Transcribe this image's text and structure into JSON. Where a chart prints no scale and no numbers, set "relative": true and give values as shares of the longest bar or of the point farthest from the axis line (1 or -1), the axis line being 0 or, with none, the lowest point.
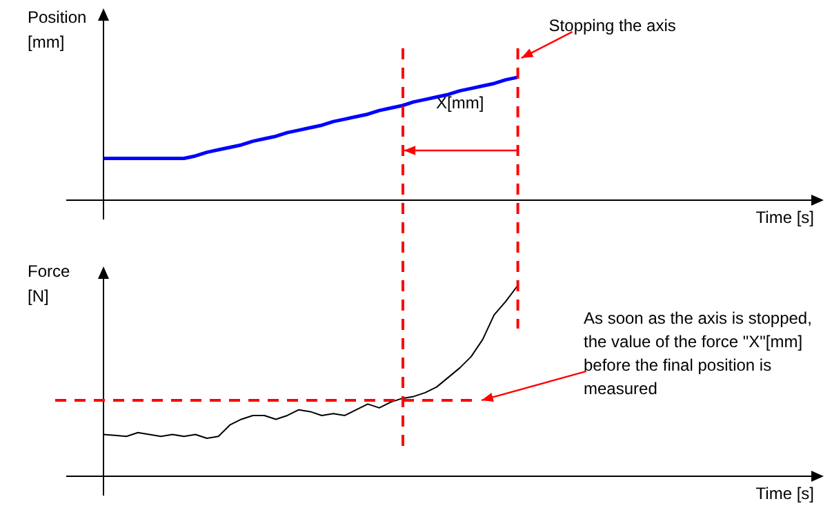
{
  "chart_data": [
    {
      "type": "line",
      "ylabel": "Position [mm]",
      "xlabel": "Time [s]",
      "relative": true,
      "legend": false,
      "grid": false,
      "marker": "none",
      "categories": [
        null,
        null,
        null,
        null,
        null,
        null,
        null,
        null,
        null,
        null,
        null,
        null,
        null,
        null,
        null,
        null,
        null,
        null,
        null,
        null,
        null,
        null,
        null,
        null,
        null,
        null,
        null,
        null,
        null,
        null,
        null,
        null,
        null,
        null,
        null,
        null,
        null,
        null,
        null,
        null,
        null,
        null,
        null,
        null,
        null,
        null,
        null,
        null,
        null,
        null,
        null,
        null,
        null,
        null,
        null,
        null,
        null,
        null,
        null,
        null,
        null,
        null
      ],
      "annotations": [
        "Stopping the axis",
        "X[mm]"
      ],
      "series": [
        {
          "color": "#0000ff",
          "values": [
            0.34,
            0.34,
            0.34,
            0.34,
            0.34,
            0.34,
            0.34,
            0.34,
            0.36,
            0.39,
            0.41,
            0.43,
            0.45,
            0.48,
            0.5,
            0.52,
            0.55,
            0.57,
            0.59,
            0.61,
            0.64,
            0.66,
            0.68,
            0.7,
            0.73,
            0.75,
            0.77,
            0.8,
            0.82,
            0.84,
            0.86,
            0.89,
            0.91,
            0.93,
            0.95,
            0.98,
            1,
            null,
            null,
            null,
            null,
            null,
            null,
            null,
            null,
            null,
            null,
            null,
            null,
            null,
            null,
            null,
            null,
            null,
            null,
            null,
            null,
            null,
            null,
            null,
            null,
            null
          ]
        }
      ]
    },
    {
      "type": "line",
      "ylabel": "Force [N]",
      "xlabel": "Time [s]",
      "relative": true,
      "legend": false,
      "grid": false,
      "marker": "none",
      "categories": [
        null,
        null,
        null,
        null,
        null,
        null,
        null,
        null,
        null,
        null,
        null,
        null,
        null,
        null,
        null,
        null,
        null,
        null,
        null,
        null,
        null,
        null,
        null,
        null,
        null,
        null,
        null,
        null,
        null,
        null,
        null,
        null,
        null,
        null,
        null,
        null,
        null,
        null,
        null,
        null,
        null,
        null,
        null,
        null,
        null,
        null,
        null,
        null,
        null,
        null,
        null,
        null,
        null,
        null,
        null,
        null,
        null,
        null,
        null,
        null,
        null,
        null
      ],
      "ref_lines": [
        {
          "axis": "y",
          "value": 0.4,
          "color": "#ff0000",
          "line_style": "dashed",
          "label": "As soon as the axis is stopped, the value of the force \"X\"[mm] before the final position is measured"
        }
      ],
      "series": [
        {
          "color": "#000000",
          "values": [
            0.22,
            0.215,
            0.21,
            0.23,
            0.22,
            0.21,
            0.22,
            0.21,
            0.22,
            0.2,
            0.21,
            0.27,
            0.3,
            0.32,
            0.32,
            0.3,
            0.32,
            0.35,
            0.34,
            0.32,
            0.33,
            0.32,
            0.35,
            0.38,
            0.36,
            0.39,
            0.41,
            0.42,
            0.44,
            0.47,
            0.52,
            0.57,
            0.63,
            0.72,
            0.85,
            0.92,
            1,
            null,
            null,
            null,
            null,
            null,
            null,
            null,
            null,
            null,
            null,
            null,
            null,
            null,
            null,
            null,
            null,
            null,
            null,
            null,
            null,
            null,
            null,
            null,
            null,
            null
          ]
        }
      ]
    }
  ]
}
